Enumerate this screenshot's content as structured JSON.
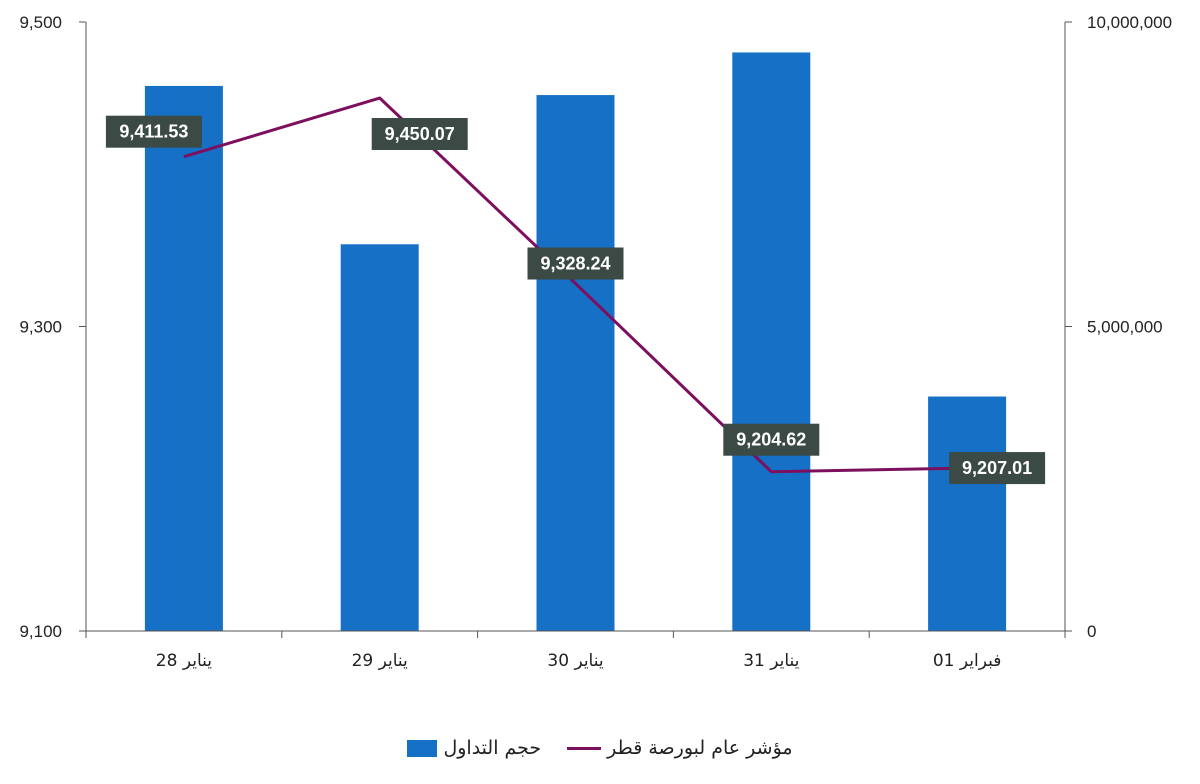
{
  "chart_data": {
    "type": "bar+line",
    "categories": [
      "28 يناير",
      "29 يناير",
      "30 يناير",
      "31 يناير",
      "01 فبراير"
    ],
    "series": [
      {
        "name": "حجم التداول",
        "type": "bar",
        "axis": "right",
        "color": "#1570c6",
        "values": [
          8950000,
          6350000,
          8800000,
          9500000,
          3850000
        ]
      },
      {
        "name": "مؤشر عام لبورصة قطر",
        "type": "line",
        "axis": "left",
        "color": "#7d0f5f",
        "values": [
          9411.53,
          9450.07,
          9328.24,
          9204.62,
          9207.01
        ],
        "labels": [
          "9,411.53",
          "9,450.07",
          "9,328.24",
          "9,204.62",
          "9,207.01"
        ]
      }
    ],
    "y_left": {
      "min": 9100,
      "max": 9500,
      "ticks": [
        "9,100",
        "9,300",
        "9,500"
      ]
    },
    "y_right": {
      "min": 0,
      "max": 10000000,
      "ticks": [
        "0",
        "5,000,000",
        "10,000,000"
      ]
    },
    "grid": false,
    "legend_position": "bottom",
    "label_box_color": "#3b4a45"
  }
}
